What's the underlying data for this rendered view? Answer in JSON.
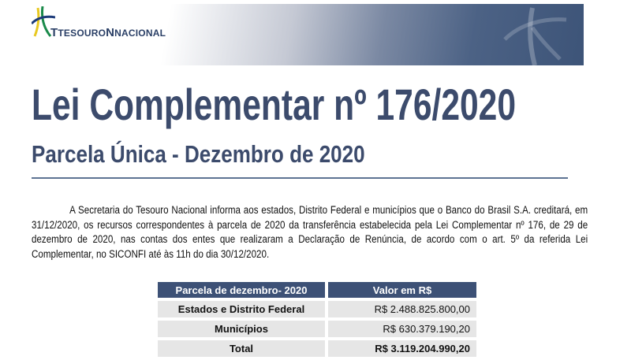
{
  "header": {
    "logo_text_first": "Tesouro",
    "logo_text_second": "Nacional"
  },
  "title": "Lei Complementar nº 176/2020",
  "subtitle": "Parcela Única - Dezembro de 2020",
  "paragraph": "A Secretaria do Tesouro Nacional informa aos estados, Distrito Federal e municípios que o Banco do Brasil S.A. creditará, em 31/12/2020, os recursos correspondentes à parcela de 2020 da transferência estabelecida pela Lei Complementar nº 176, de 29 de dezembro de 2020, nas contas dos entes que realizaram a Declaração de Renúncia, de acordo com o art. 5º da referida Lei Complementar, no SICONFI até às 11h do dia 30/12/2020.",
  "table": {
    "headers": [
      "Parcela de dezembro- 2020",
      "Valor em R$"
    ],
    "rows": [
      [
        "Estados e Distrito Federal",
        "R$ 2.488.825.800,00"
      ],
      [
        "Municípios",
        "R$ 630.379.190,20"
      ],
      [
        "Total",
        "R$ 3.119.204.990,20"
      ]
    ]
  },
  "colors": {
    "brand": "#3d5176",
    "title": "#3c4b6c"
  }
}
